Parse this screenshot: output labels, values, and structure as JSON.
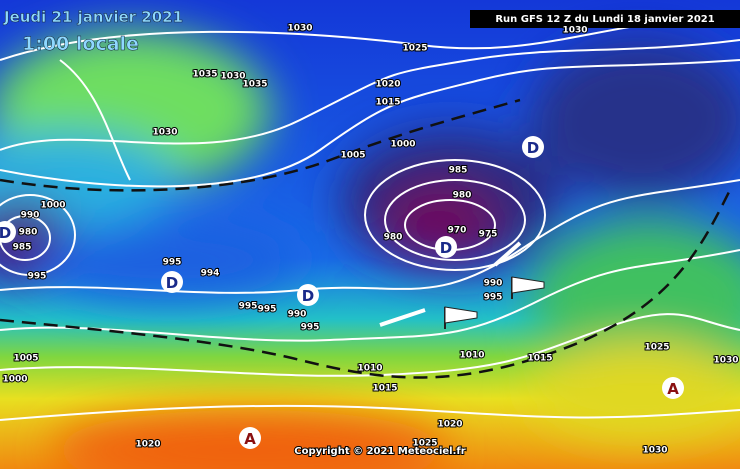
{
  "header": {
    "date": "Jeudi 21 janvier 2021",
    "time": "1:00 locale",
    "run": "Run GFS 12 Z du Lundi 18 janvier 2021",
    "copyright": "Copyright © 2021 Meteociel.fr"
  },
  "isobar_labels": [
    1030,
    1030,
    1025,
    1035,
    1030,
    1035,
    1020,
    1015,
    1030,
    1005,
    1000,
    985,
    980,
    1000,
    990,
    980,
    985,
    995,
    995,
    994,
    970,
    975,
    980,
    990,
    995,
    995,
    995,
    990,
    995,
    1005,
    1000,
    1010,
    1010,
    1015,
    1015,
    1025,
    1030,
    1020,
    1020,
    1025,
    1030
  ],
  "centers": [
    "D",
    "D",
    "D",
    "D",
    "D",
    "A",
    "A"
  ]
}
